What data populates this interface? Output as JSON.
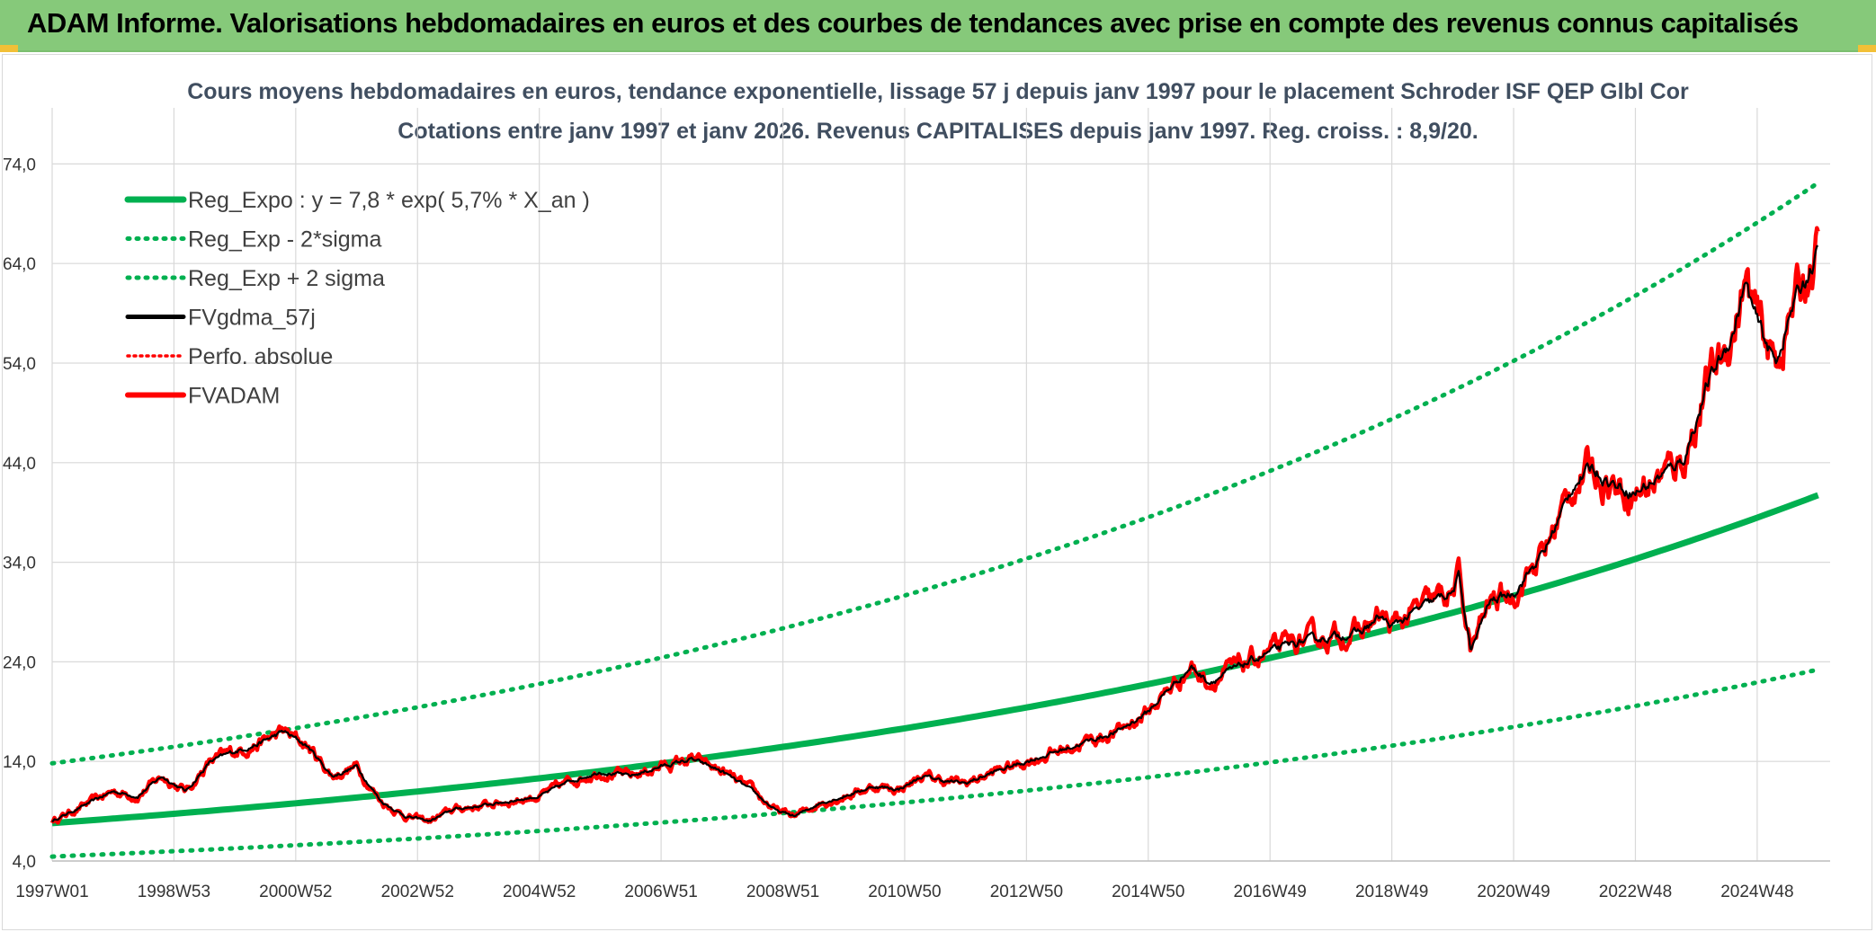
{
  "header": {
    "title": "ADAM Informe. Valorisations hebdomadaires en euros et des courbes de tendances avec prise en compte des revenus connus capitalisés"
  },
  "colors": {
    "header_bg": "#86c97a",
    "trend": "#00b050",
    "band": "#00b050",
    "smooth": "#000000",
    "perfo": "#ff0000",
    "price": "#ff0000"
  },
  "chart_data": {
    "type": "line",
    "title": "Cours moyens hebdomadaires en euros, tendance exponentielle, lissage 57 j depuis janv 1997 pour le placement Schroder ISF QEP Glbl Cor",
    "subtitle": "Cotations entre janv 1997 et janv 2026. Revenus CAPITALISES depuis janv 1997. Reg. croiss. : 8,9/20.",
    "xlabel": "",
    "ylabel": "",
    "ylim": [
      4,
      79
    ],
    "xlim": [
      1997.0,
      2026.05
    ],
    "y_ticks": [
      "74,0",
      "64,0",
      "54,0",
      "44,0",
      "34,0",
      "24,0",
      "14,0",
      "4,0"
    ],
    "y_tick_values": [
      74,
      64,
      54,
      44,
      34,
      24,
      14,
      4
    ],
    "x_ticks": [
      "1997W01",
      "1998W53",
      "2000W52",
      "2002W52",
      "2004W52",
      "2006W51",
      "2008W51",
      "2010W50",
      "2012W50",
      "2014W50",
      "2016W49",
      "2018W49",
      "2020W49",
      "2022W48",
      "2024W48"
    ],
    "x_tick_values": [
      1997.0,
      1999.0,
      2001.0,
      2003.0,
      2005.0,
      2007.0,
      2009.0,
      2011.0,
      2013.0,
      2015.0,
      2017.0,
      2019.0,
      2021.0,
      2023.0,
      2025.0
    ],
    "grid": true,
    "legend_position": "top-left",
    "trend_model": {
      "a": 7.8,
      "rate": 0.057,
      "sigma_factor_low": 0.57,
      "sigma_factor_high": 1.77
    },
    "series": [
      {
        "name": "Reg_Expo : y = 7,8 * exp( 5,7% *  X_an )",
        "style": "solid-green"
      },
      {
        "name": "Reg_Exp - 2*sigma",
        "style": "dotted-green"
      },
      {
        "name": "Reg_Exp + 2 sigma",
        "style": "dotted-green"
      },
      {
        "name": "FVgdma_57j",
        "style": "solid-black"
      },
      {
        "name": "Perfo. absolue",
        "style": "dotted-red"
      },
      {
        "name": "FVADAM",
        "style": "solid-red"
      }
    ],
    "price_anchor_x": [
      1997.0,
      1997.5,
      1998.0,
      1998.4,
      1998.8,
      1999.2,
      1999.6,
      2000.0,
      2000.4,
      2000.8,
      2001.2,
      2001.6,
      2002.0,
      2002.4,
      2002.8,
      2003.2,
      2003.6,
      2004.0,
      2004.5,
      2005.0,
      2005.5,
      2006.0,
      2006.5,
      2007.0,
      2007.5,
      2008.0,
      2008.5,
      2008.9,
      2009.2,
      2009.6,
      2010.0,
      2010.5,
      2010.9,
      2011.3,
      2011.7,
      2012.0,
      2012.5,
      2013.0,
      2013.5,
      2014.0,
      2014.5,
      2015.0,
      2015.3,
      2015.7,
      2016.0,
      2016.5,
      2017.0,
      2017.5,
      2018.0,
      2018.5,
      2018.8,
      2019.0,
      2019.5,
      2020.0,
      2020.1,
      2020.3,
      2020.6,
      2021.0,
      2021.5,
      2022.0,
      2022.3,
      2022.6,
      2023.0,
      2023.5,
      2023.8,
      2024.2,
      2024.6,
      2024.8,
      2025.0,
      2025.3,
      2025.6,
      2026.0
    ],
    "price_anchor_y": [
      8.0,
      9.5,
      11.0,
      10.5,
      12.5,
      11.0,
      14.0,
      15.0,
      15.8,
      17.0,
      15.5,
      12.5,
      13.5,
      10.0,
      8.5,
      8.0,
      9.2,
      9.5,
      10.0,
      10.5,
      12.0,
      13.0,
      12.5,
      13.5,
      14.2,
      13.0,
      11.0,
      9.0,
      8.5,
      9.8,
      10.5,
      11.5,
      11.2,
      12.5,
      12.0,
      11.8,
      13.0,
      14.0,
      15.0,
      16.0,
      17.0,
      19.0,
      21.0,
      23.5,
      22.0,
      23.5,
      25.0,
      26.0,
      26.5,
      27.0,
      28.5,
      27.5,
      29.5,
      31.0,
      32.5,
      25.0,
      30.0,
      31.0,
      35.0,
      42.0,
      43.5,
      42.0,
      41.0,
      43.0,
      44.5,
      52.0,
      57.0,
      62.0,
      58.0,
      54.0,
      60.0,
      65.0
    ]
  },
  "axis": {
    "y": [
      "74,0",
      "64,0",
      "54,0",
      "44,0",
      "34,0",
      "24,0",
      "14,0",
      "4,0"
    ],
    "x": [
      "1997W01",
      "1998W53",
      "2000W52",
      "2002W52",
      "2004W52",
      "2006W51",
      "2008W51",
      "2010W50",
      "2012W50",
      "2014W50",
      "2016W49",
      "2018W49",
      "2020W49",
      "2022W48",
      "2024W48"
    ]
  }
}
